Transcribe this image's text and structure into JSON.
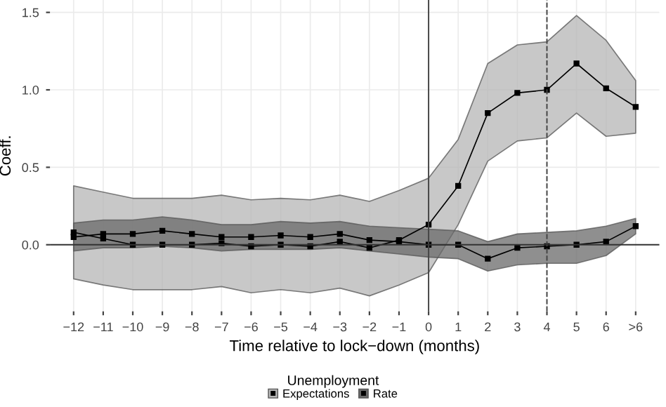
{
  "chart_data": {
    "type": "line",
    "xlabel": "Time relative to lock−down (months)",
    "ylabel": "Coeff.",
    "legend_title": "Unemployment",
    "x": [
      -12,
      -11,
      -10,
      -9,
      -8,
      -7,
      -6,
      -5,
      -4,
      -3,
      -2,
      -1,
      0,
      1,
      2,
      3,
      4,
      5,
      6,
      7
    ],
    "xlim": [
      -12.8,
      7.8
    ],
    "xticks": [
      -12,
      -11,
      -10,
      -9,
      -8,
      -7,
      -6,
      -5,
      -4,
      -3,
      -2,
      -1,
      0,
      1,
      2,
      3,
      4,
      5,
      6,
      {
        "value": 7,
        "label": ">6"
      }
    ],
    "series": [
      {
        "name": "Expectations",
        "color": "#000000",
        "values": [
          0.08,
          0.04,
          0.0,
          0.0,
          0.0,
          0.01,
          -0.01,
          0.0,
          -0.01,
          0.02,
          -0.02,
          0.03,
          0.13,
          0.38,
          0.85,
          0.98,
          1.0,
          1.17,
          1.01,
          0.89
        ],
        "upper": [
          0.38,
          0.34,
          0.3,
          0.3,
          0.3,
          0.32,
          0.29,
          0.3,
          0.29,
          0.32,
          0.28,
          0.35,
          0.43,
          0.68,
          1.17,
          1.29,
          1.31,
          1.48,
          1.32,
          1.06
        ],
        "lower": [
          -0.22,
          -0.26,
          -0.29,
          -0.29,
          -0.29,
          -0.27,
          -0.31,
          -0.29,
          -0.31,
          -0.28,
          -0.33,
          -0.26,
          -0.18,
          0.13,
          0.54,
          0.67,
          0.69,
          0.85,
          0.7,
          0.72
        ]
      },
      {
        "name": "Rate",
        "color": "#000000",
        "values": [
          0.05,
          0.07,
          0.07,
          0.09,
          0.07,
          0.05,
          0.05,
          0.06,
          0.05,
          0.07,
          0.03,
          0.02,
          0.0,
          0.0,
          -0.09,
          -0.02,
          -0.01,
          0.0,
          0.02,
          0.12
        ],
        "upper": [
          0.14,
          0.16,
          0.16,
          0.18,
          0.16,
          0.13,
          0.13,
          0.15,
          0.14,
          0.15,
          0.12,
          0.11,
          0.1,
          0.09,
          0.02,
          0.07,
          0.08,
          0.09,
          0.12,
          0.17
        ],
        "lower": [
          -0.04,
          -0.02,
          -0.02,
          -0.01,
          -0.02,
          -0.04,
          -0.03,
          -0.03,
          -0.03,
          -0.02,
          -0.04,
          -0.06,
          -0.08,
          -0.09,
          -0.17,
          -0.13,
          -0.12,
          -0.12,
          -0.07,
          0.07
        ]
      }
    ],
    "ylim": [
      -0.43,
      1.58
    ],
    "yticks": [
      {
        "value": 0,
        "label": "0.0"
      },
      0.5,
      {
        "value": 1,
        "label": "1.0"
      },
      1.5
    ],
    "ref_lines": [
      {
        "axis": "x",
        "value": 0,
        "line_style": "solid"
      },
      {
        "axis": "x",
        "value": 4,
        "line_style": "dashed"
      },
      {
        "axis": "y",
        "value": 0,
        "line_style": "solid"
      }
    ],
    "grid": true,
    "legend": "bottom",
    "marker": "square",
    "line_style": "solid"
  }
}
